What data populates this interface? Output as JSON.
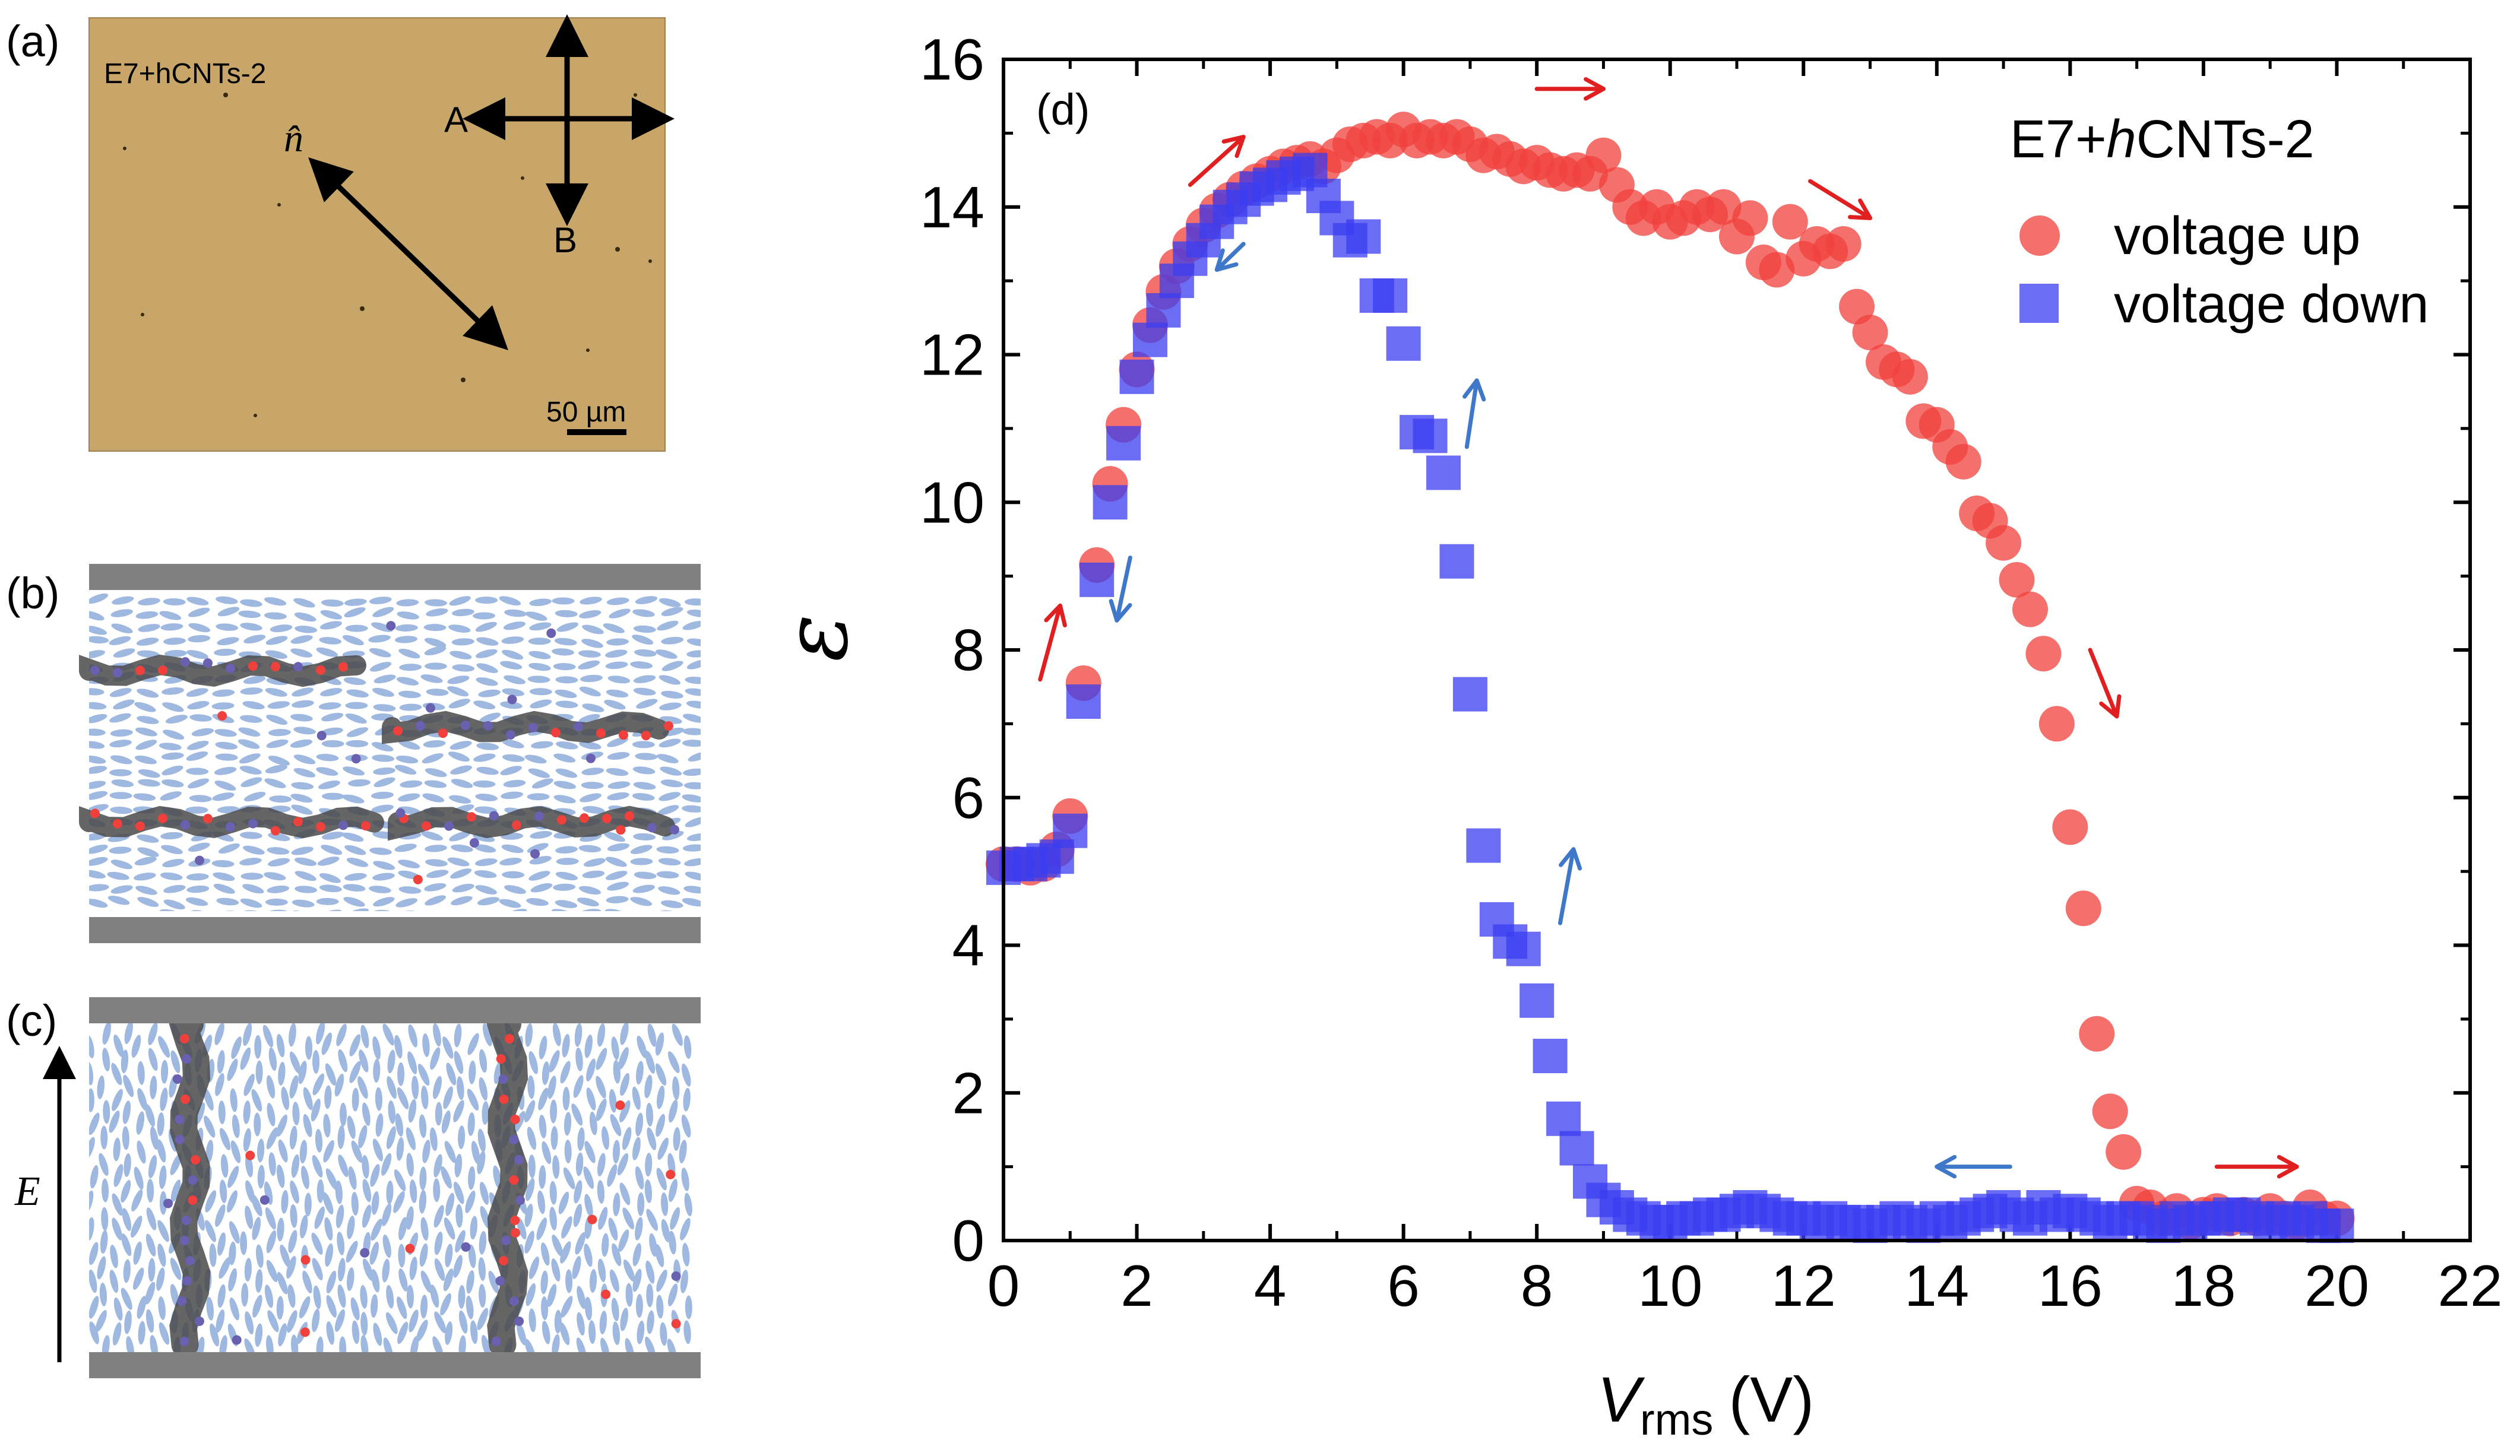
{
  "panels": {
    "a": {
      "label": "(a)",
      "sample": "E7+hCNTs-2",
      "director_label": "n̂",
      "polarizer_label": "A",
      "analyzer_label": "B",
      "scale_bar": "50 µm",
      "background_color": "#c8a66a"
    },
    "b": {
      "label": "(b)"
    },
    "c": {
      "label": "(c)",
      "field_label": "E"
    }
  },
  "colors": {
    "voltage_up": "#f0403c",
    "voltage_down": "#3a3ef0",
    "arrow_red": "#e02020",
    "arrow_blue": "#3f78c8",
    "lc_molecule": "#9fb8e0",
    "electrode": "#808080",
    "cnt": "#4a4a4a"
  },
  "chart_data": {
    "type": "scatter",
    "panel_label": "(d)",
    "title": "E7+hCNTs-2",
    "xlabel_main": "V",
    "xlabel_sub": "rms",
    "xlabel_unit": "(V)",
    "ylabel": "ε",
    "xlim": [
      0,
      22
    ],
    "ylim": [
      0,
      16
    ],
    "x_ticks": [
      "0",
      "2",
      "4",
      "6",
      "8",
      "10",
      "12",
      "14",
      "16",
      "18",
      "20",
      "22"
    ],
    "y_ticks": [
      "0",
      "2",
      "4",
      "6",
      "8",
      "10",
      "12",
      "14",
      "16"
    ],
    "legend_position": "top-right",
    "series": [
      {
        "name": "voltage up",
        "marker": "circle",
        "points": [
          [
            0,
            5.1
          ],
          [
            0.2,
            5.1
          ],
          [
            0.4,
            5.05
          ],
          [
            0.6,
            5.1
          ],
          [
            0.8,
            5.3
          ],
          [
            1.0,
            5.75
          ],
          [
            1.2,
            7.55
          ],
          [
            1.4,
            9.15
          ],
          [
            1.6,
            10.25
          ],
          [
            1.8,
            11.05
          ],
          [
            2.0,
            11.8
          ],
          [
            2.2,
            12.4
          ],
          [
            2.4,
            12.85
          ],
          [
            2.6,
            13.2
          ],
          [
            2.8,
            13.5
          ],
          [
            3.0,
            13.75
          ],
          [
            3.2,
            13.95
          ],
          [
            3.4,
            14.1
          ],
          [
            3.6,
            14.25
          ],
          [
            3.8,
            14.35
          ],
          [
            4.0,
            14.45
          ],
          [
            4.2,
            14.55
          ],
          [
            4.4,
            14.6
          ],
          [
            4.6,
            14.65
          ],
          [
            4.8,
            14.55
          ],
          [
            5.0,
            14.7
          ],
          [
            5.2,
            14.85
          ],
          [
            5.4,
            14.9
          ],
          [
            5.6,
            14.95
          ],
          [
            5.8,
            14.9
          ],
          [
            6.0,
            15.05
          ],
          [
            6.2,
            14.9
          ],
          [
            6.4,
            14.95
          ],
          [
            6.6,
            14.9
          ],
          [
            6.8,
            14.95
          ],
          [
            7.0,
            14.85
          ],
          [
            7.2,
            14.7
          ],
          [
            7.4,
            14.75
          ],
          [
            7.6,
            14.65
          ],
          [
            7.8,
            14.55
          ],
          [
            8.0,
            14.6
          ],
          [
            8.2,
            14.5
          ],
          [
            8.4,
            14.45
          ],
          [
            8.6,
            14.5
          ],
          [
            8.8,
            14.45
          ],
          [
            9.0,
            14.7
          ],
          [
            9.2,
            14.3
          ],
          [
            9.4,
            14.0
          ],
          [
            9.6,
            13.85
          ],
          [
            9.8,
            14.0
          ],
          [
            10.0,
            13.8
          ],
          [
            10.2,
            13.85
          ],
          [
            10.4,
            14.0
          ],
          [
            10.6,
            13.9
          ],
          [
            10.8,
            14.0
          ],
          [
            11.0,
            13.6
          ],
          [
            11.2,
            13.85
          ],
          [
            11.4,
            13.25
          ],
          [
            11.6,
            13.15
          ],
          [
            11.8,
            13.8
          ],
          [
            12.0,
            13.3
          ],
          [
            12.2,
            13.5
          ],
          [
            12.4,
            13.4
          ],
          [
            12.6,
            13.5
          ],
          [
            12.8,
            12.65
          ],
          [
            13.0,
            12.3
          ],
          [
            13.2,
            11.9
          ],
          [
            13.4,
            11.8
          ],
          [
            13.6,
            11.7
          ],
          [
            13.8,
            11.1
          ],
          [
            14.0,
            11.05
          ],
          [
            14.2,
            10.75
          ],
          [
            14.4,
            10.55
          ],
          [
            14.6,
            9.85
          ],
          [
            14.8,
            9.75
          ],
          [
            15.0,
            9.45
          ],
          [
            15.2,
            8.95
          ],
          [
            15.4,
            8.55
          ],
          [
            15.6,
            7.95
          ],
          [
            15.8,
            7.0
          ],
          [
            16.0,
            5.6
          ],
          [
            16.2,
            4.5
          ],
          [
            16.4,
            2.8
          ],
          [
            16.6,
            1.75
          ],
          [
            16.8,
            1.2
          ],
          [
            17.0,
            0.5
          ],
          [
            17.2,
            0.45
          ],
          [
            17.4,
            0.3
          ],
          [
            17.6,
            0.4
          ],
          [
            17.8,
            0.25
          ],
          [
            18.0,
            0.35
          ],
          [
            18.2,
            0.4
          ],
          [
            18.4,
            0.3
          ],
          [
            18.6,
            0.35
          ],
          [
            18.8,
            0.3
          ],
          [
            19.0,
            0.4
          ],
          [
            19.2,
            0.3
          ],
          [
            19.4,
            0.25
          ],
          [
            19.6,
            0.45
          ],
          [
            19.8,
            0.3
          ],
          [
            20.0,
            0.3
          ]
        ]
      },
      {
        "name": "voltage down",
        "marker": "square",
        "points": [
          [
            0,
            5.05
          ],
          [
            0.2,
            5.1
          ],
          [
            0.4,
            5.1
          ],
          [
            0.6,
            5.15
          ],
          [
            0.8,
            5.2
          ],
          [
            1.0,
            5.55
          ],
          [
            1.2,
            7.3
          ],
          [
            1.4,
            8.95
          ],
          [
            1.6,
            10.0
          ],
          [
            1.8,
            10.8
          ],
          [
            2.0,
            11.7
          ],
          [
            2.2,
            12.2
          ],
          [
            2.4,
            12.6
          ],
          [
            2.6,
            13.0
          ],
          [
            2.8,
            13.3
          ],
          [
            3.0,
            13.55
          ],
          [
            3.2,
            13.8
          ],
          [
            3.4,
            14.0
          ],
          [
            3.6,
            14.1
          ],
          [
            3.8,
            14.25
          ],
          [
            4.0,
            14.3
          ],
          [
            4.2,
            14.4
          ],
          [
            4.4,
            14.45
          ],
          [
            4.6,
            14.5
          ],
          [
            4.8,
            14.15
          ],
          [
            5.0,
            13.85
          ],
          [
            5.2,
            13.55
          ],
          [
            5.4,
            13.6
          ],
          [
            5.6,
            12.8
          ],
          [
            5.8,
            12.8
          ],
          [
            6.0,
            12.15
          ],
          [
            6.2,
            10.95
          ],
          [
            6.4,
            10.9
          ],
          [
            6.6,
            10.4
          ],
          [
            6.8,
            9.2
          ],
          [
            7.0,
            7.4
          ],
          [
            7.2,
            5.35
          ],
          [
            7.4,
            4.35
          ],
          [
            7.6,
            4.05
          ],
          [
            7.8,
            3.95
          ],
          [
            8.0,
            3.25
          ],
          [
            8.2,
            2.5
          ],
          [
            8.4,
            1.65
          ],
          [
            8.6,
            1.25
          ],
          [
            8.8,
            0.8
          ],
          [
            9.0,
            0.55
          ],
          [
            9.2,
            0.45
          ],
          [
            9.4,
            0.35
          ],
          [
            9.6,
            0.3
          ],
          [
            9.8,
            0.25
          ],
          [
            10.0,
            0.25
          ],
          [
            10.2,
            0.3
          ],
          [
            10.4,
            0.3
          ],
          [
            10.6,
            0.35
          ],
          [
            10.8,
            0.35
          ],
          [
            11.0,
            0.4
          ],
          [
            11.2,
            0.45
          ],
          [
            11.4,
            0.4
          ],
          [
            11.6,
            0.35
          ],
          [
            11.8,
            0.3
          ],
          [
            12.0,
            0.3
          ],
          [
            12.2,
            0.25
          ],
          [
            12.4,
            0.3
          ],
          [
            12.6,
            0.25
          ],
          [
            12.8,
            0.25
          ],
          [
            13.0,
            0.2
          ],
          [
            13.2,
            0.25
          ],
          [
            13.4,
            0.3
          ],
          [
            13.6,
            0.25
          ],
          [
            13.8,
            0.2
          ],
          [
            14.0,
            0.3
          ],
          [
            14.2,
            0.25
          ],
          [
            14.4,
            0.3
          ],
          [
            14.6,
            0.35
          ],
          [
            14.8,
            0.4
          ],
          [
            15.0,
            0.45
          ],
          [
            15.2,
            0.35
          ],
          [
            15.4,
            0.3
          ],
          [
            15.6,
            0.45
          ],
          [
            15.8,
            0.35
          ],
          [
            16.0,
            0.4
          ],
          [
            16.2,
            0.35
          ],
          [
            16.4,
            0.3
          ],
          [
            16.6,
            0.25
          ],
          [
            16.8,
            0.3
          ],
          [
            17.0,
            0.3
          ],
          [
            17.2,
            0.25
          ],
          [
            17.4,
            0.2
          ],
          [
            17.6,
            0.3
          ],
          [
            17.8,
            0.25
          ],
          [
            18.0,
            0.3
          ],
          [
            18.2,
            0.3
          ],
          [
            18.4,
            0.35
          ],
          [
            18.6,
            0.35
          ],
          [
            18.8,
            0.3
          ],
          [
            19.0,
            0.25
          ],
          [
            19.2,
            0.3
          ],
          [
            19.4,
            0.25
          ],
          [
            19.6,
            0.3
          ],
          [
            19.8,
            0.2
          ],
          [
            20.0,
            0.2
          ]
        ]
      }
    ],
    "direction_arrows": [
      {
        "series": "voltage up",
        "from": [
          0.55,
          7.6
        ],
        "to": [
          0.85,
          8.6
        ]
      },
      {
        "series": "voltage up",
        "from": [
          2.8,
          14.3
        ],
        "to": [
          3.6,
          14.95
        ]
      },
      {
        "series": "voltage up",
        "from": [
          8.0,
          15.6
        ],
        "to": [
          9.0,
          15.6
        ]
      },
      {
        "series": "voltage up",
        "from": [
          12.1,
          14.35
        ],
        "to": [
          13.0,
          13.85
        ]
      },
      {
        "series": "voltage up",
        "from": [
          16.3,
          8.0
        ],
        "to": [
          16.7,
          7.1
        ]
      },
      {
        "series": "voltage up",
        "from": [
          18.2,
          1.0
        ],
        "to": [
          19.4,
          1.0
        ]
      },
      {
        "series": "voltage down",
        "from": [
          1.9,
          9.25
        ],
        "to": [
          1.7,
          8.4
        ]
      },
      {
        "series": "voltage down",
        "from": [
          3.6,
          13.5
        ],
        "to": [
          3.2,
          13.15
        ]
      },
      {
        "series": "voltage down",
        "from": [
          6.95,
          10.75
        ],
        "to": [
          7.1,
          11.65
        ]
      },
      {
        "series": "voltage down",
        "from": [
          8.35,
          4.3
        ],
        "to": [
          8.55,
          5.3
        ]
      },
      {
        "series": "voltage down",
        "from": [
          15.1,
          1.0
        ],
        "to": [
          14.0,
          1.0
        ]
      }
    ]
  }
}
